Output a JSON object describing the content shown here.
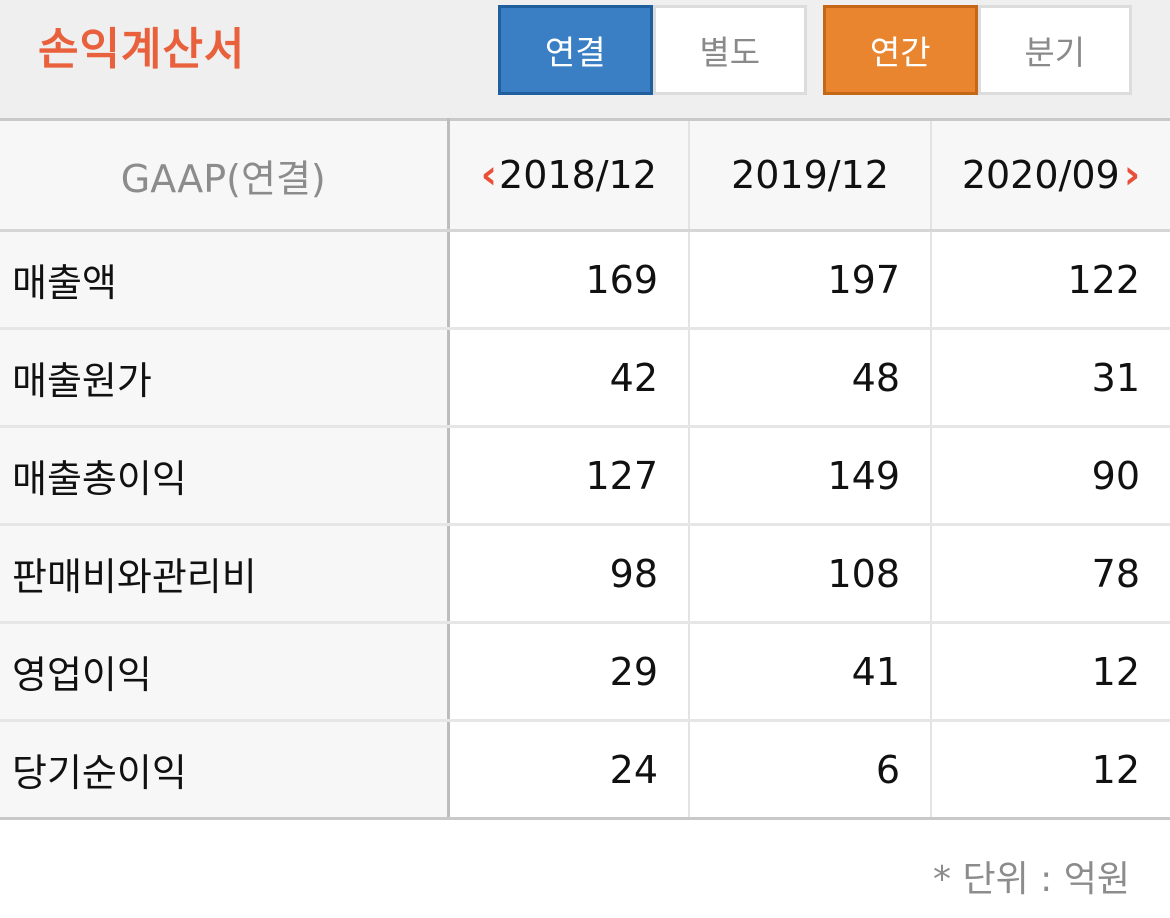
{
  "header": {
    "title": "손익계산서",
    "scope_toggle": {
      "options": [
        "연결",
        "별도"
      ],
      "selected": "연결",
      "active_color": "#3a7fc4"
    },
    "period_toggle": {
      "options": [
        "연간",
        "분기"
      ],
      "selected": "연간",
      "active_color": "#e9852f"
    },
    "title_color": "#e8603c"
  },
  "table": {
    "label_header": "GAAP(연결)",
    "periods": [
      "2018/12",
      "2019/12",
      "2020/09"
    ],
    "prev_icon": "chevron-left-icon",
    "next_icon": "chevron-right-icon",
    "rows": [
      {
        "label": "매출액",
        "values": [
          "169",
          "197",
          "122"
        ]
      },
      {
        "label": "매출원가",
        "values": [
          "42",
          "48",
          "31"
        ]
      },
      {
        "label": "매출총이익",
        "values": [
          "127",
          "149",
          "90"
        ]
      },
      {
        "label": "판매비와관리비",
        "values": [
          "98",
          "108",
          "78"
        ]
      },
      {
        "label": "영업이익",
        "values": [
          "29",
          "41",
          "12"
        ]
      },
      {
        "label": "당기순이익",
        "values": [
          "24",
          "6",
          "12"
        ]
      }
    ]
  },
  "footer": {
    "unit_note": "* 단위 : 억원"
  }
}
